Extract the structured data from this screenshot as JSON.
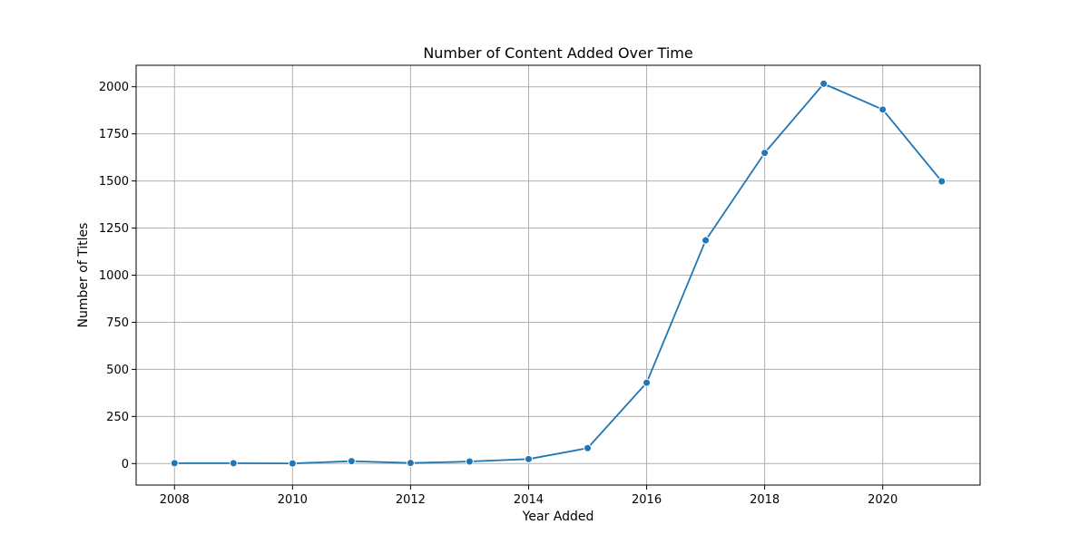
{
  "chart_data": {
    "type": "line",
    "title": "Number of Content Added Over Time",
    "xlabel": "Year Added",
    "ylabel": "Number of Titles",
    "x": [
      2008,
      2009,
      2010,
      2011,
      2012,
      2013,
      2014,
      2015,
      2016,
      2017,
      2018,
      2019,
      2020,
      2021
    ],
    "series": [
      {
        "values": [
          2,
          2,
          1,
          13,
          3,
          11,
          24,
          82,
          429,
          1185,
          1649,
          2016,
          1879,
          1498
        ]
      }
    ],
    "xlim": [
      2007.35,
      2021.65
    ],
    "ylim": [
      -114,
      2114
    ],
    "xticks": [
      2008,
      2010,
      2012,
      2014,
      2016,
      2018,
      2020
    ],
    "yticks": [
      0,
      250,
      500,
      750,
      1000,
      1250,
      1500,
      1750,
      2000
    ],
    "grid": true,
    "marker": "circle",
    "colors": {
      "line": "#1f77b4",
      "grid": "#b0b0b0",
      "axes": "#000000"
    }
  }
}
